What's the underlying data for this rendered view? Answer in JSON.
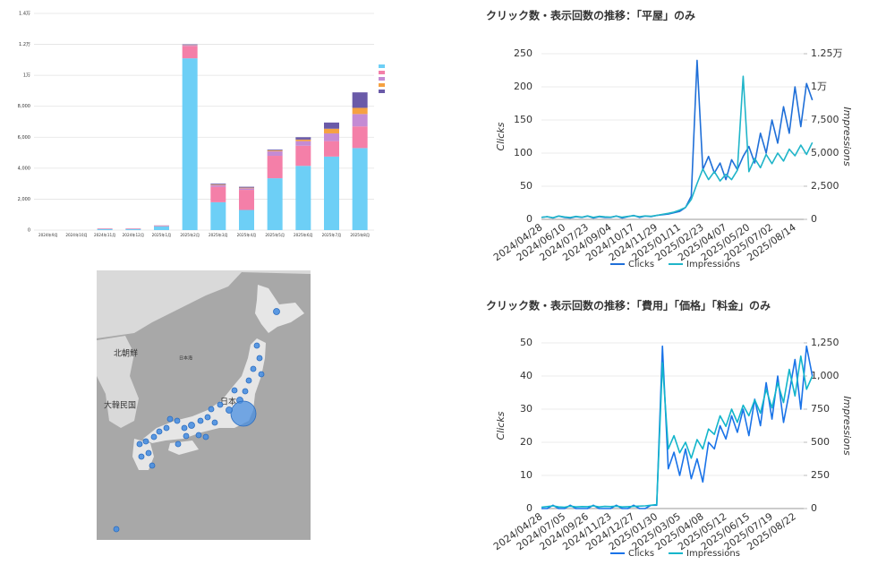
{
  "chart_data": [
    {
      "type": "stacked-bar",
      "categories": [
        "2024年9月",
        "2024年10月",
        "2024年11月",
        "2024年12月",
        "2025年1月",
        "2025年2月",
        "2025年3月",
        "2025年4月",
        "2025年5月",
        "2025年6月",
        "2025年7月",
        "2025年8月"
      ],
      "series": [
        {
          "color": "#6dcff6",
          "values": [
            0,
            0,
            60,
            60,
            250,
            11100,
            1800,
            1300,
            3350,
            4150,
            4750,
            5300
          ]
        },
        {
          "color": "#f47fa8",
          "values": [
            0,
            0,
            30,
            30,
            40,
            800,
            1000,
            1300,
            1450,
            1300,
            1000,
            1400
          ]
        },
        {
          "color": "#c48bd4",
          "values": [
            0,
            0,
            0,
            0,
            0,
            40,
            100,
            100,
            300,
            300,
            500,
            800
          ]
        },
        {
          "color": "#f5a142",
          "values": [
            0,
            0,
            0,
            0,
            0,
            20,
            40,
            40,
            50,
            100,
            300,
            400
          ]
        },
        {
          "color": "#6a5aa8",
          "values": [
            0,
            0,
            10,
            10,
            10,
            40,
            60,
            60,
            50,
            150,
            400,
            1000
          ]
        }
      ],
      "ylim": [
        0,
        14000
      ],
      "yticks": [
        0,
        {
          "value": 2000,
          "label": "2,000"
        },
        {
          "value": 4000,
          "label": "4,000"
        },
        {
          "value": 6000,
          "label": "6,000"
        },
        {
          "value": 8000,
          "label": "8,000"
        },
        {
          "value": 10000,
          "label": "1万"
        },
        {
          "value": 12000,
          "label": "1.2万"
        },
        {
          "value": 14000,
          "label": "1.4万"
        }
      ],
      "grid": true
    },
    {
      "type": "line",
      "title": "クリック数・表示回数の推移：「平屋」のみ",
      "ylabel": "Clicks",
      "y2label": "Impressions",
      "categories": [
        "2024/04/28",
        null,
        null,
        null,
        "2024/06/10",
        null,
        null,
        null,
        "2024/07/23",
        null,
        null,
        null,
        "2024/09/04",
        null,
        null,
        null,
        "2024/10/17",
        null,
        null,
        null,
        "2024/11/29",
        null,
        null,
        null,
        "2025/01/11",
        null,
        null,
        null,
        "2025/02/23",
        null,
        null,
        null,
        "2025/04/07",
        null,
        null,
        null,
        "2025/05/20",
        null,
        null,
        null,
        "2025/07/02",
        null,
        null,
        null,
        "2025/08/14",
        null,
        null,
        null
      ],
      "series": [
        {
          "name": "Clicks",
          "color": "#1f6fd8",
          "axis": "y",
          "values": [
            3,
            4,
            2,
            5,
            3,
            2,
            4,
            3,
            5,
            2,
            4,
            3,
            3,
            5,
            2,
            4,
            6,
            3,
            5,
            4,
            6,
            7,
            8,
            10,
            12,
            18,
            35,
            240,
            75,
            95,
            70,
            85,
            60,
            90,
            75,
            95,
            110,
            85,
            130,
            100,
            150,
            115,
            170,
            130,
            200,
            140,
            205,
            180
          ]
        },
        {
          "name": "Impressions",
          "color": "#20b5c9",
          "axis": "y2",
          "values": [
            150,
            200,
            120,
            250,
            180,
            140,
            220,
            160,
            260,
            150,
            230,
            190,
            170,
            240,
            160,
            220,
            280,
            200,
            260,
            230,
            300,
            380,
            450,
            550,
            700,
            900,
            1500,
            2700,
            3800,
            3000,
            3600,
            2900,
            3400,
            3000,
            3700,
            10800,
            3600,
            4600,
            3900,
            4900,
            4200,
            5000,
            4400,
            5300,
            4800,
            5600,
            4900,
            5800
          ]
        }
      ],
      "ylim": [
        0,
        250
      ],
      "yticks": [
        0,
        50,
        100,
        150,
        200,
        250
      ],
      "y2lim": [
        0,
        12500
      ],
      "y2ticks": [
        0,
        {
          "value": 2500,
          "label": "2,500"
        },
        {
          "value": 5000,
          "label": "5,000"
        },
        {
          "value": 7500,
          "label": "7,500"
        },
        {
          "value": 10000,
          "label": "1万"
        },
        {
          "value": 12500,
          "label": "1.25万"
        }
      ],
      "grid": true,
      "legend": "bottom"
    },
    {
      "type": "line",
      "title": "クリック数・表示回数の推移：「費用」「価格」「料金」のみ",
      "ylabel": "Clicks",
      "y2label": "Impressions",
      "categories": [
        "2024/04/28",
        null,
        null,
        null,
        "2024/07/05",
        null,
        null,
        null,
        "2024/09/26",
        null,
        null,
        null,
        "2024/11/23",
        null,
        null,
        null,
        "2024/12/27",
        null,
        null,
        null,
        "2025/01/30",
        null,
        null,
        null,
        "2025/03/05",
        null,
        null,
        null,
        "2025/04/08",
        null,
        null,
        null,
        "2025/05/12",
        null,
        null,
        null,
        "2025/06/15",
        null,
        null,
        null,
        "2025/07/19",
        null,
        null,
        null,
        "2025/08/22",
        null,
        null,
        null
      ],
      "series": [
        {
          "name": "Clicks",
          "color": "#1a73e8",
          "axis": "y",
          "values": [
            0,
            0,
            1,
            0,
            0,
            1,
            0,
            0,
            0,
            1,
            0,
            0,
            0,
            1,
            0,
            0,
            1,
            0,
            0,
            1,
            1,
            49,
            12,
            17,
            10,
            18,
            9,
            15,
            8,
            20,
            18,
            25,
            21,
            28,
            23,
            30,
            22,
            33,
            25,
            38,
            27,
            40,
            26,
            35,
            45,
            30,
            49,
            40
          ]
        },
        {
          "name": "Impressions",
          "color": "#12b5cb",
          "axis": "y2",
          "values": [
            10,
            15,
            20,
            12,
            10,
            18,
            12,
            15,
            14,
            20,
            12,
            16,
            15,
            18,
            12,
            14,
            16,
            18,
            20,
            25,
            30,
            1100,
            450,
            550,
            420,
            500,
            380,
            520,
            450,
            600,
            560,
            700,
            620,
            750,
            650,
            780,
            700,
            820,
            720,
            900,
            760,
            950,
            800,
            1050,
            850,
            1150,
            900,
            1000
          ]
        }
      ],
      "ylim": [
        0,
        50
      ],
      "yticks": [
        0,
        10,
        20,
        30,
        40,
        50
      ],
      "y2lim": [
        0,
        1250
      ],
      "y2ticks": [
        0,
        250,
        500,
        750,
        {
          "value": 1000,
          "label": "1,000"
        },
        {
          "value": 1250,
          "label": "1,250"
        }
      ],
      "grid": true,
      "legend": "bottom"
    }
  ],
  "map": {
    "labels": [
      "北朝鮮",
      "大韓民国",
      "日本",
      "日本海"
    ]
  }
}
